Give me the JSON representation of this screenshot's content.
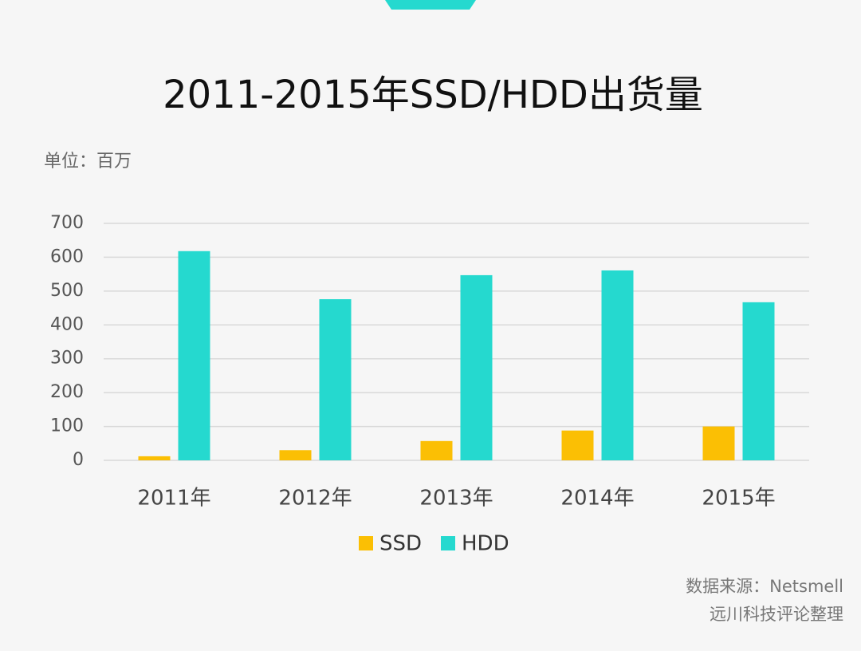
{
  "chart_data": {
    "type": "bar",
    "title": "2011-2015年SSD/HDD出货量",
    "subtitle": "单位：百万",
    "categories": [
      "2011年",
      "2012年",
      "2013年",
      "2014年",
      "2015年"
    ],
    "series": [
      {
        "name": "SSD",
        "color": "#fbbf04",
        "values": [
          12,
          30,
          57,
          88,
          100
        ]
      },
      {
        "name": "HDD",
        "color": "#25d9cf",
        "values": [
          618,
          476,
          547,
          561,
          467
        ]
      }
    ],
    "ylim": [
      0,
      700
    ],
    "yticks": [
      0,
      100,
      200,
      300,
      400,
      500,
      600,
      700
    ],
    "grid": true,
    "legend": "bottom",
    "source": [
      "数据来源：Netsmell",
      "远川科技评论整理"
    ]
  }
}
